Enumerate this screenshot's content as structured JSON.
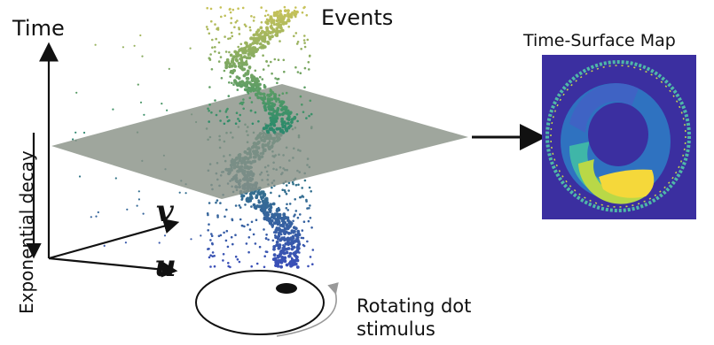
{
  "labels": {
    "time": "Time",
    "events": "Events",
    "time_surface_map": "Time-Surface Map",
    "exponential_decay": "Exponential decay",
    "axis_v": "v",
    "axis_u": "u",
    "stimulus_line1": "Rotating dot",
    "stimulus_line2": "stimulus"
  },
  "colors": {
    "event_high": "#c8c35a",
    "event_mid": "#2e8c6a",
    "event_low": "#3a4fb8",
    "plane": "#8a9388",
    "map_background": "#3b2fa0",
    "map_hot": "#f5d83a"
  }
}
